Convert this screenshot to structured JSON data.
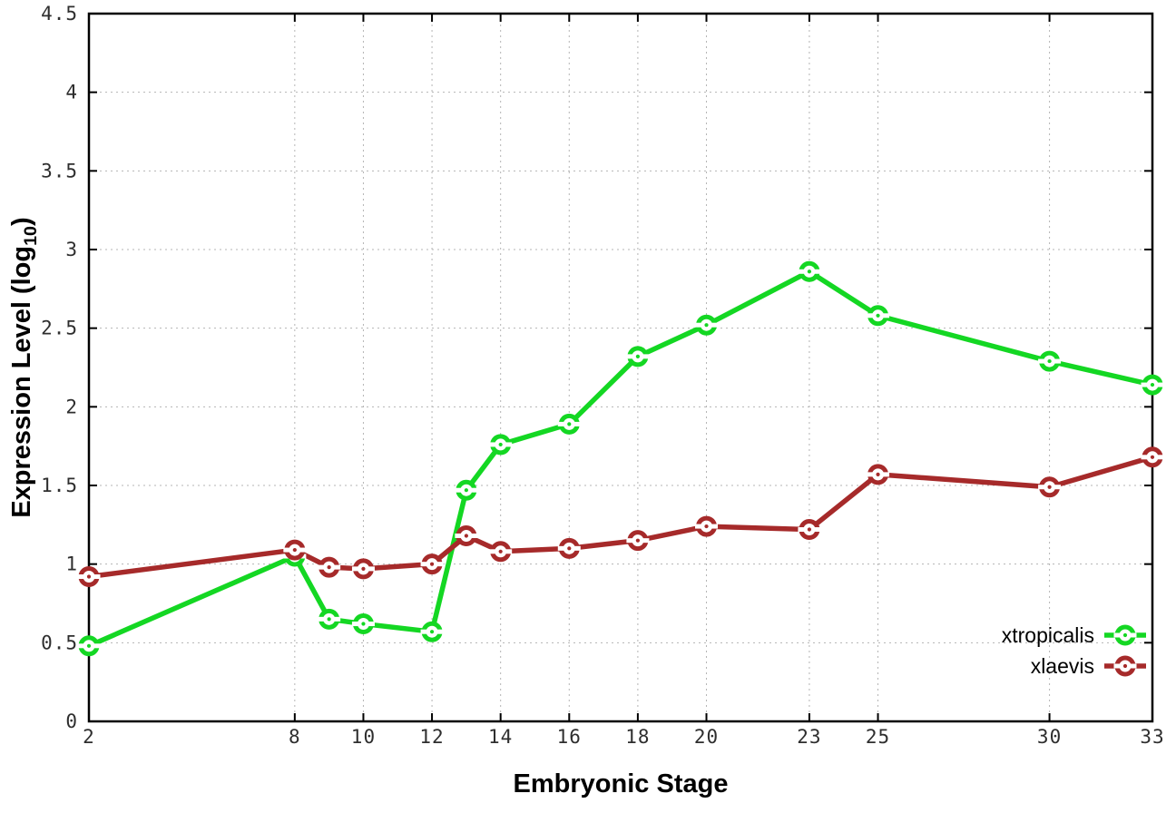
{
  "chart_data": {
    "type": "line",
    "title": "",
    "xlabel": "Embryonic Stage",
    "ylabel": "Expression Level (log10)",
    "ylabel_parts": {
      "main": "Expression Level (log",
      "sub": "10",
      "close": ")"
    },
    "xlim": [
      2,
      33
    ],
    "ylim": [
      0,
      4.5
    ],
    "x_ticks": [
      2,
      8,
      10,
      12,
      14,
      16,
      18,
      20,
      23,
      25,
      30,
      33
    ],
    "y_ticks": [
      0,
      0.5,
      1,
      1.5,
      2,
      2.5,
      3,
      3.5,
      4,
      4.5
    ],
    "grid": true,
    "legend_position": "bottom-right",
    "x": [
      2,
      8,
      9,
      10,
      12,
      13,
      14,
      16,
      18,
      20,
      23,
      25,
      30,
      33
    ],
    "series": [
      {
        "name": "xtropicalis",
        "color": "#14d723",
        "values": [
          0.48,
          1.05,
          0.65,
          0.62,
          0.57,
          1.47,
          1.76,
          1.89,
          2.32,
          2.52,
          2.86,
          2.58,
          2.29,
          2.14
        ]
      },
      {
        "name": "xlaevis",
        "color": "#a62a2a",
        "values": [
          0.92,
          1.09,
          0.98,
          0.97,
          1.0,
          1.18,
          1.08,
          1.1,
          1.15,
          1.24,
          1.22,
          1.57,
          1.49,
          1.68
        ]
      }
    ]
  },
  "colors": {
    "background": "#ffffff",
    "border": "#000000",
    "grid": "#b4b4b4",
    "tick_label": "#2e2e2e",
    "legend_text": "#000000"
  }
}
